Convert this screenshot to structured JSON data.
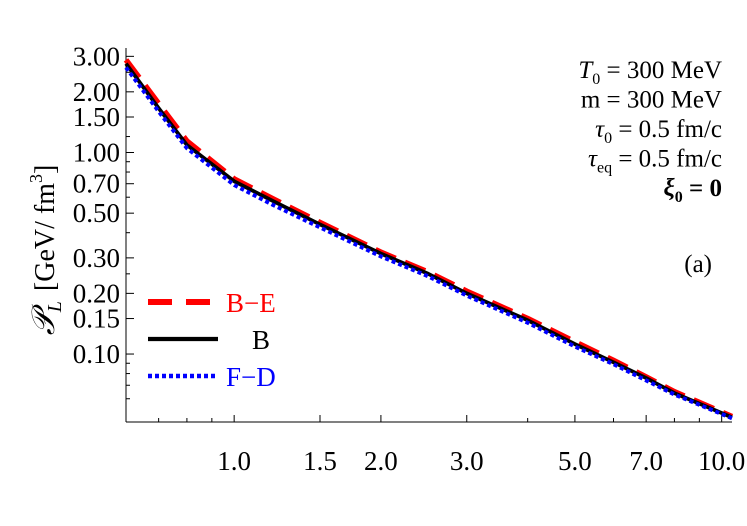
{
  "chart_data": {
    "type": "line",
    "xscale": "log",
    "yscale": "log",
    "xlim": [
      0.6,
      10.5
    ],
    "ylim": [
      0.046,
      3.3
    ],
    "xticks": [
      1.0,
      1.5,
      2.0,
      3.0,
      5.0,
      7.0,
      10.0
    ],
    "xtick_labels": [
      "1.0",
      "1.5",
      "2.0",
      "3.0",
      "5.0",
      "7.0",
      "10.0"
    ],
    "yticks": [
      3.0,
      2.0,
      1.5,
      1.0,
      0.7,
      0.5,
      0.3,
      0.2,
      0.15,
      0.1
    ],
    "ytick_labels": [
      "3.00",
      "2.00",
      "1.50",
      "1.00",
      "0.70",
      "0.50",
      "0.30",
      "0.20",
      "0.15",
      "0.10"
    ],
    "ylabel": {
      "symbol": "𝒫",
      "subscript": "L",
      "unit_pre": "[GeV/ fm",
      "unit_sup": "3",
      "unit_post": "]"
    },
    "xlabel": "",
    "grid": false,
    "legend_position": "left",
    "panel_label": "(a)",
    "params": [
      {
        "sym": "T",
        "sub": "0",
        "rest": " = 300 MeV"
      },
      {
        "sym": "",
        "sub": "",
        "rest": "m = 300 MeV"
      },
      {
        "sym": "τ",
        "sub": "0",
        "rest": " = 0.5 fm/c"
      },
      {
        "sym": "τ",
        "sub": "eq",
        "rest": " = 0.5 fm/c"
      },
      {
        "sym": "ξ",
        "sub": "0",
        "rest": " = 0"
      }
    ],
    "series": [
      {
        "name": "B−E",
        "color": "#ff0000",
        "style": "dashed",
        "x": [
          0.6,
          0.7,
          0.8,
          1.0,
          1.2,
          1.5,
          2.0,
          2.5,
          3.0,
          4.0,
          5.0,
          6.0,
          7.0,
          8.0,
          10.5
        ],
        "y": [
          2.88,
          1.75,
          1.14,
          0.74,
          0.59,
          0.45,
          0.32,
          0.255,
          0.205,
          0.15,
          0.115,
          0.093,
          0.077,
          0.065,
          0.049
        ]
      },
      {
        "name": "B",
        "color": "#000000",
        "style": "solid",
        "x": [
          0.6,
          0.7,
          0.8,
          1.0,
          1.2,
          1.5,
          2.0,
          2.5,
          3.0,
          4.0,
          5.0,
          6.0,
          7.0,
          8.0,
          10.5
        ],
        "y": [
          2.76,
          1.66,
          1.09,
          0.72,
          0.575,
          0.44,
          0.315,
          0.25,
          0.2,
          0.147,
          0.112,
          0.091,
          0.076,
          0.064,
          0.0485
        ]
      },
      {
        "name": "F−D",
        "color": "#0000ff",
        "style": "dotted",
        "x": [
          0.6,
          0.7,
          0.8,
          1.0,
          1.2,
          1.5,
          2.0,
          2.5,
          3.0,
          4.0,
          5.0,
          6.0,
          7.0,
          8.0,
          10.5
        ],
        "y": [
          2.64,
          1.6,
          1.05,
          0.69,
          0.55,
          0.425,
          0.305,
          0.243,
          0.195,
          0.143,
          0.109,
          0.089,
          0.074,
          0.063,
          0.048
        ]
      }
    ]
  }
}
